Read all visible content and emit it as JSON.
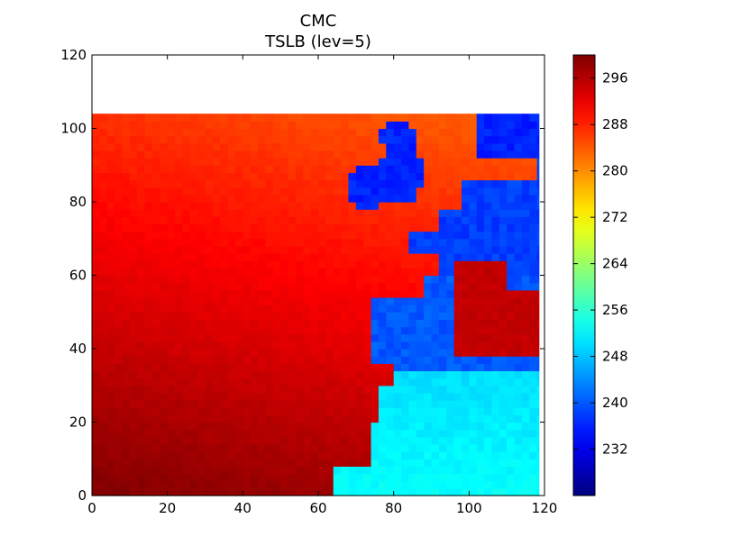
{
  "chart_data": {
    "type": "heatmap",
    "title": "CMC",
    "subtitle": "TSLB (lev=5)",
    "xlabel": "",
    "ylabel": "",
    "xlim": [
      0,
      120
    ],
    "ylim": [
      0,
      120
    ],
    "x_ticks": [
      "0",
      "20",
      "40",
      "60",
      "80",
      "100",
      "120"
    ],
    "y_ticks": [
      "0",
      "20",
      "40",
      "60",
      "80",
      "100",
      "120"
    ],
    "grid": false,
    "data_extent": {
      "x": [
        0,
        118.5
      ],
      "y": [
        0,
        104
      ]
    },
    "colormap": "jet",
    "colorbar": {
      "range": [
        224,
        300
      ],
      "ticks": [
        "232",
        "240",
        "248",
        "256",
        "264",
        "272",
        "280",
        "288",
        "296"
      ],
      "tick_values": [
        232,
        240,
        248,
        256,
        264,
        272,
        280,
        288,
        296
      ]
    },
    "field_description": {
      "ocean": "warm, 282 to 300 (warmest in south-west corner, coolest near top)",
      "land": "cold, 232 to 252 (Europe ~236, N. Africa ~250)",
      "sahara_band": "warm strip ~295 across x 95-118, y 40-65"
    },
    "colors": {
      "jet": [
        "#00007f",
        "#0000ff",
        "#007fff",
        "#00ffff",
        "#7fff7f",
        "#ffff00",
        "#ff7f00",
        "#ff0000",
        "#7f0000"
      ]
    }
  }
}
